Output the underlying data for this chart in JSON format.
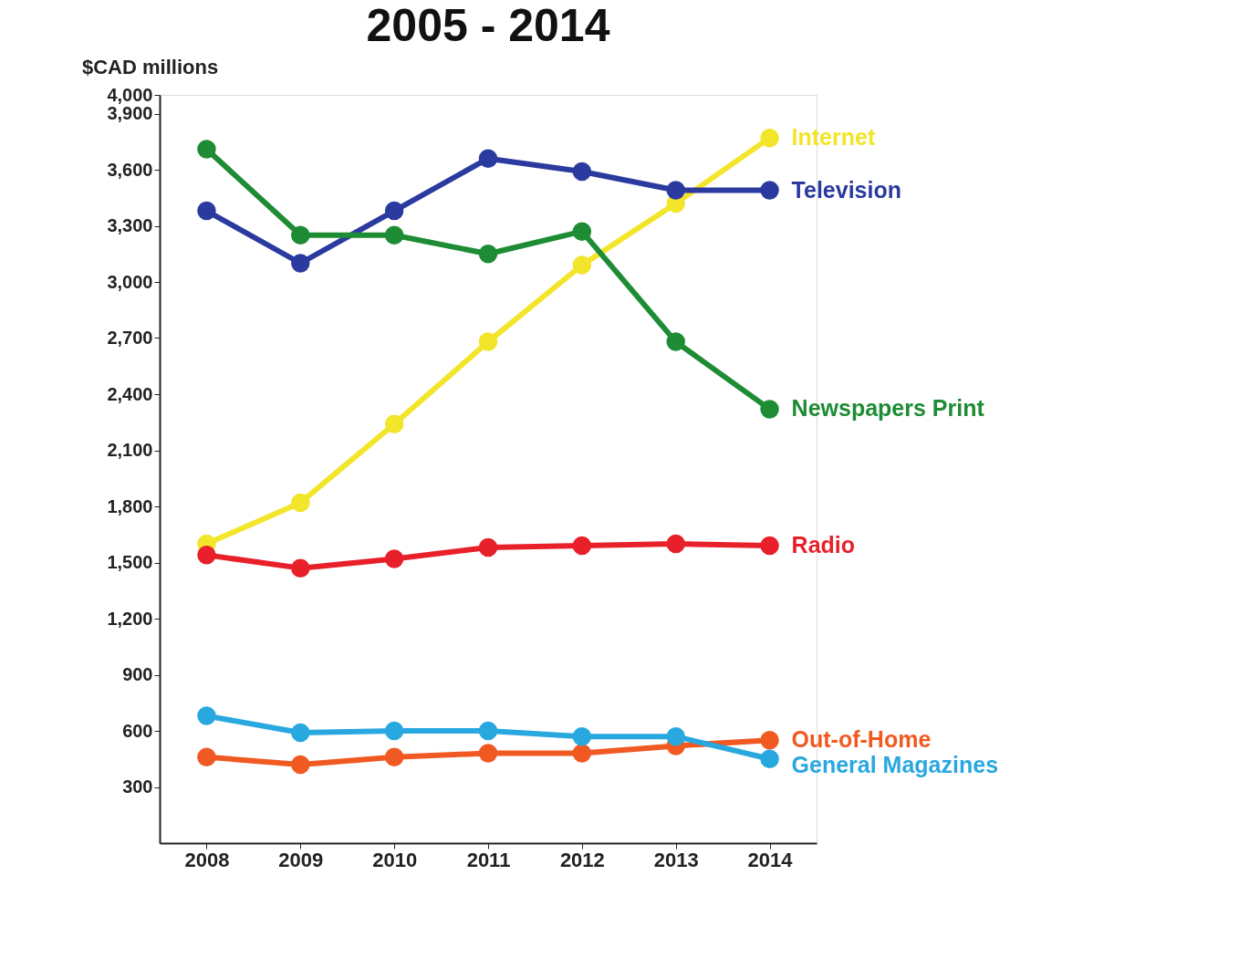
{
  "chart_data": {
    "type": "line",
    "title": "2005 - 2014",
    "ylabel": "$CAD millions",
    "categories": [
      "2008",
      "2009",
      "2010",
      "2011",
      "2012",
      "2013",
      "2014"
    ],
    "ylim": [
      0,
      4000
    ],
    "yticks": [
      {
        "value": 300,
        "label": "300"
      },
      {
        "value": 600,
        "label": "600"
      },
      {
        "value": 900,
        "label": "900"
      },
      {
        "value": 1200,
        "label": "1,200"
      },
      {
        "value": 1500,
        "label": "1,500"
      },
      {
        "value": 1800,
        "label": "1,800"
      },
      {
        "value": 2100,
        "label": "2,100"
      },
      {
        "value": 2400,
        "label": "2,400"
      },
      {
        "value": 2700,
        "label": "2,700"
      },
      {
        "value": 3000,
        "label": "3,000"
      },
      {
        "value": 3300,
        "label": "3,300"
      },
      {
        "value": 3600,
        "label": "3,600"
      },
      {
        "value": 3900,
        "label": "3,900"
      },
      {
        "value": 4000,
        "label": "4,000"
      }
    ],
    "grid": false,
    "legend": false,
    "marker": "circle",
    "line_style": "solid",
    "series": [
      {
        "name": "Internet",
        "color": "#f2e52a",
        "values": [
          1600,
          1820,
          2240,
          2680,
          3090,
          3420,
          3770
        ]
      },
      {
        "name": "Television",
        "color": "#2b3a9e",
        "values": [
          3380,
          3100,
          3380,
          3660,
          3590,
          3490,
          3490
        ]
      },
      {
        "name": "Newspapers Print",
        "color": "#1e8c34",
        "values": [
          3710,
          3250,
          3250,
          3150,
          3270,
          2680,
          2320
        ]
      },
      {
        "name": "Radio",
        "color": "#e8202a",
        "values": [
          1540,
          1470,
          1520,
          1580,
          1590,
          1600,
          1590
        ]
      },
      {
        "name": "Out-of-Home",
        "color": "#f05a22",
        "values": [
          460,
          420,
          460,
          480,
          480,
          520,
          550
        ]
      },
      {
        "name": "General Magazines",
        "color": "#29a8e0",
        "values": [
          680,
          590,
          600,
          600,
          570,
          570,
          450
        ]
      }
    ]
  }
}
